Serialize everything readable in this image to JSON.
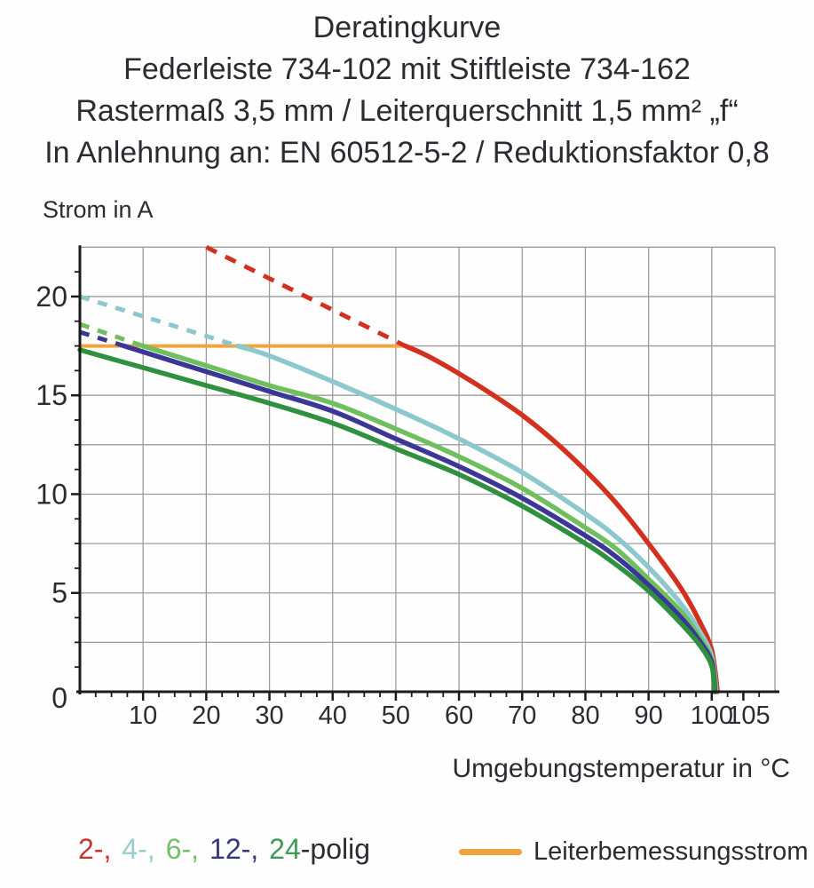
{
  "header": {
    "line1": "Deratingkurve",
    "line2": "Federleiste 734-102 mit Stiftleiste 734-162",
    "line3": "Rastermaß 3,5 mm / Leiterquerschnitt 1,5 mm² „f“",
    "line4": "In Anlehnung an: EN 60512-5-2 / Reduktionsfaktor 0,8"
  },
  "chart": {
    "y_axis_title": "Strom in A",
    "x_axis_title": "Umgebungstemperatur in °C"
  },
  "legend": {
    "pole_tokens": [
      {
        "text": "2-,",
        "color": "#cb3531",
        "gap_after": true
      },
      {
        "text": "4-,",
        "color": "#9bccd1",
        "gap_after": true
      },
      {
        "text": "6-,",
        "color": "#72c068",
        "gap_after": true
      },
      {
        "text": "12-,",
        "color": "#36377f",
        "gap_after": true
      },
      {
        "text": "24",
        "color": "#3f9c56",
        "gap_after": false
      },
      {
        "text": "-polig",
        "color": "#2b2b32",
        "gap_after": false
      }
    ],
    "rated_current_label": "Leiterbemessungsstrom",
    "rated_current_color": "#f2a43c"
  },
  "colors": {
    "grid": "#9c9c9c",
    "axis": "#1b1b1b",
    "tick_text": "#2b2b32"
  },
  "chart_data": {
    "type": "line",
    "title": "Deratingkurve",
    "xlabel": "Umgebungstemperatur in °C",
    "ylabel": "Strom in A",
    "x_range": [
      0,
      110
    ],
    "y_range": [
      0,
      22.5
    ],
    "x_grid_step": 10,
    "y_grid_step": 2.5,
    "x_ticks_major": [
      10,
      20,
      30,
      40,
      50,
      60,
      70,
      80,
      90,
      100,
      105
    ],
    "x_tick_minor_step": 2.5,
    "y_ticks_major": [
      0,
      5,
      10,
      15,
      20
    ],
    "y_tick_minor_step": 1.25,
    "grid": true,
    "legend_position": "bottom",
    "rated_current_line": {
      "label": "Leiterbemessungsstrom",
      "value_A": 17.5,
      "x_from": 0,
      "x_to": 51.5,
      "color": "#f2a43c"
    },
    "series": [
      {
        "name": "2-polig",
        "color": "#d3301f",
        "dash_pattern": "13 11",
        "dashed_extrapolation": [
          [
            20,
            22.5
          ],
          [
            51.5,
            17.5
          ]
        ],
        "points": [
          [
            51.5,
            17.5
          ],
          [
            55,
            17.0
          ],
          [
            60,
            16.1
          ],
          [
            65,
            15.1
          ],
          [
            70,
            14.0
          ],
          [
            75,
            12.7
          ],
          [
            80,
            11.2
          ],
          [
            85,
            9.5
          ],
          [
            90,
            7.5
          ],
          [
            95,
            5.3
          ],
          [
            98,
            3.6
          ],
          [
            100,
            2.1
          ],
          [
            100.9,
            0
          ]
        ]
      },
      {
        "name": "4-polig",
        "color": "#8cc8cd",
        "dash_pattern": "11 10",
        "dashed_extrapolation": [
          [
            0,
            20.0
          ],
          [
            25,
            17.5
          ]
        ],
        "points": [
          [
            25,
            17.5
          ],
          [
            30,
            17.0
          ],
          [
            40,
            15.7
          ],
          [
            50,
            14.3
          ],
          [
            60,
            12.8
          ],
          [
            70,
            11.1
          ],
          [
            80,
            9.0
          ],
          [
            85,
            7.8
          ],
          [
            90,
            6.3
          ],
          [
            95,
            4.5
          ],
          [
            98,
            3.1
          ],
          [
            100,
            1.8
          ],
          [
            100.7,
            0
          ]
        ]
      },
      {
        "name": "6-polig",
        "color": "#70bf5e",
        "dash_pattern": "11 10",
        "dashed_extrapolation": [
          [
            0,
            18.6
          ],
          [
            10,
            17.5
          ]
        ],
        "points": [
          [
            10,
            17.5
          ],
          [
            20,
            16.5
          ],
          [
            30,
            15.5
          ],
          [
            40,
            14.6
          ],
          [
            50,
            13.3
          ],
          [
            60,
            11.9
          ],
          [
            70,
            10.3
          ],
          [
            80,
            8.3
          ],
          [
            85,
            7.2
          ],
          [
            90,
            5.7
          ],
          [
            95,
            4.1
          ],
          [
            98,
            2.8
          ],
          [
            100,
            1.6
          ],
          [
            100.6,
            0
          ]
        ]
      },
      {
        "name": "12-polig",
        "color": "#3a3796",
        "dash_pattern": "11 10",
        "dashed_extrapolation": [
          [
            0,
            18.2
          ],
          [
            7,
            17.5
          ]
        ],
        "points": [
          [
            7,
            17.5
          ],
          [
            10,
            17.2
          ],
          [
            20,
            16.2
          ],
          [
            30,
            15.2
          ],
          [
            40,
            14.2
          ],
          [
            50,
            12.8
          ],
          [
            60,
            11.4
          ],
          [
            70,
            9.8
          ],
          [
            80,
            7.9
          ],
          [
            85,
            6.8
          ],
          [
            90,
            5.4
          ],
          [
            95,
            3.8
          ],
          [
            98,
            2.6
          ],
          [
            100,
            1.5
          ],
          [
            100.5,
            0
          ]
        ]
      },
      {
        "name": "24-polig",
        "color": "#2f9140",
        "dash_pattern": null,
        "dashed_extrapolation": null,
        "points": [
          [
            0,
            17.3
          ],
          [
            10,
            16.4
          ],
          [
            20,
            15.5
          ],
          [
            30,
            14.6
          ],
          [
            40,
            13.6
          ],
          [
            50,
            12.3
          ],
          [
            60,
            11.0
          ],
          [
            70,
            9.4
          ],
          [
            80,
            7.5
          ],
          [
            85,
            6.4
          ],
          [
            90,
            5.1
          ],
          [
            95,
            3.5
          ],
          [
            98,
            2.4
          ],
          [
            100,
            1.3
          ],
          [
            100.4,
            0
          ]
        ]
      }
    ]
  }
}
